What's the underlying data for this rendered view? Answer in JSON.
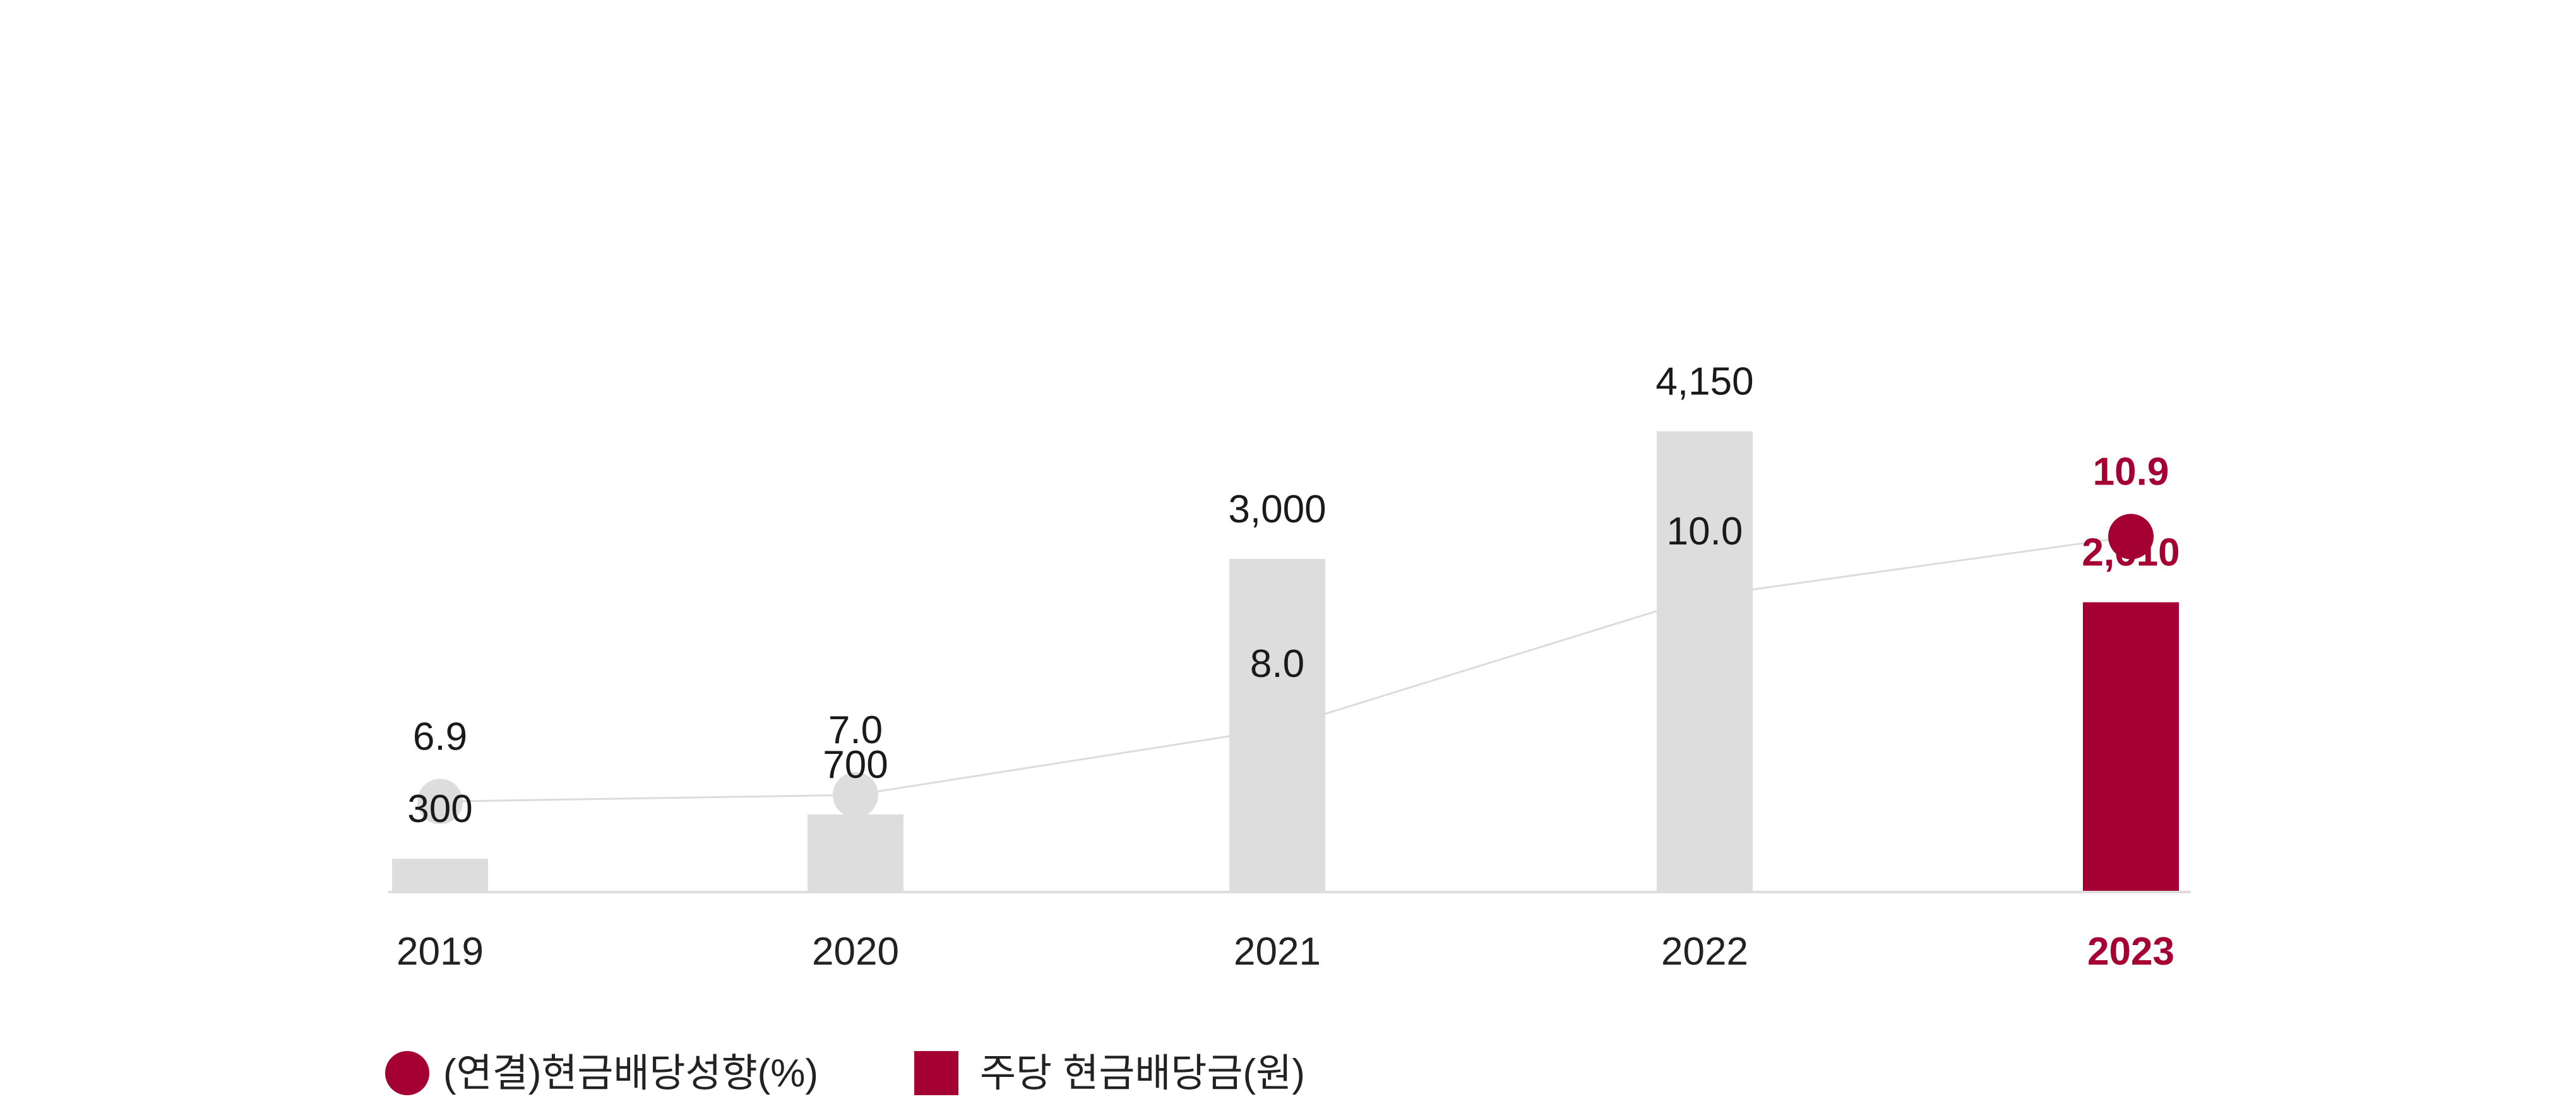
{
  "chart_data": {
    "type": "bar+line",
    "categories": [
      "2019",
      "2020",
      "2021",
      "2022",
      "2023"
    ],
    "series": [
      {
        "name": "(연결)현금배당성향(%)",
        "kind": "line",
        "values": [
          6.9,
          7.0,
          8.0,
          10.0,
          10.9
        ],
        "labels": [
          "6.9",
          "7.0",
          "8.0",
          "10.0",
          "10.9"
        ]
      },
      {
        "name": "주당 현금배당금(원)",
        "kind": "bar",
        "values": [
          300,
          700,
          3000,
          4150,
          2610
        ],
        "labels": [
          "300",
          "700",
          "3,000",
          "4,150",
          "2,610"
        ]
      }
    ],
    "highlight_category": "2023",
    "grid": false,
    "legend_position": "bottom-left"
  },
  "colors": {
    "accent": "#A50034",
    "muted": "#DDDDDD",
    "text": "#1A1A1A",
    "axis": "#DDDDDD",
    "line": "#DCDCDC"
  }
}
